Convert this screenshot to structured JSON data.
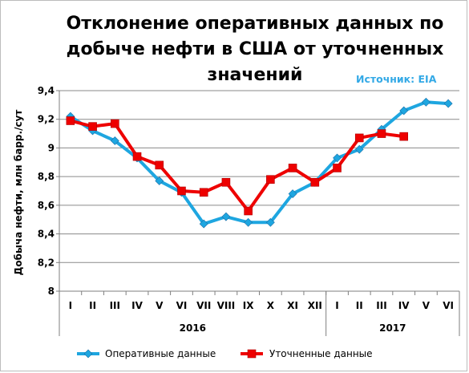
{
  "chart_data": {
    "type": "line",
    "title_lines": [
      "Отклонение оперативных данных по",
      "добыче нефти в США от уточненных",
      "значений"
    ],
    "source": "Источник: EIA",
    "ylabel": "Добыча нефти, млн барр./сут",
    "xlabel": "",
    "ylim": [
      8,
      9.4
    ],
    "y_ticks": [
      "9,4",
      "9,2",
      "9",
      "8,8",
      "8,6",
      "8,4",
      "8,2",
      "8"
    ],
    "y_tick_values": [
      9.4,
      9.2,
      9.0,
      8.8,
      8.6,
      8.4,
      8.2,
      8.0
    ],
    "categories": [
      "I",
      "II",
      "III",
      "IV",
      "V",
      "VI",
      "VII",
      "VIII",
      "IX",
      "X",
      "XI",
      "XII",
      "I",
      "II",
      "III",
      "IV",
      "V",
      "VI"
    ],
    "years": [
      {
        "label": "2016",
        "from_index": 0,
        "to_index": 11
      },
      {
        "label": "2017",
        "from_index": 12,
        "to_index": 17
      }
    ],
    "grid": true,
    "legend_position": "bottom",
    "series": [
      {
        "name": "Оперативные данные",
        "color": "#1ea6e0",
        "marker": "diamond",
        "values": [
          9.22,
          9.12,
          9.05,
          8.93,
          8.77,
          8.69,
          8.47,
          8.52,
          8.48,
          8.48,
          8.68,
          8.76,
          8.93,
          8.99,
          9.13,
          9.26,
          9.32,
          9.31
        ]
      },
      {
        "name": "Уточненные данные",
        "color": "#ee0000",
        "marker": "square",
        "values": [
          9.19,
          9.15,
          9.17,
          8.94,
          8.88,
          8.7,
          8.69,
          8.76,
          8.56,
          8.78,
          8.86,
          8.76,
          8.86,
          9.07,
          9.1,
          9.08,
          null,
          null
        ]
      }
    ]
  }
}
